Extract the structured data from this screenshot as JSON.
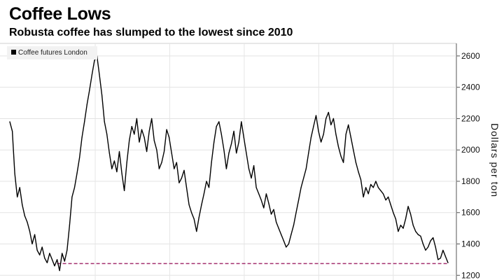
{
  "chart_data": {
    "type": "line",
    "title": "Coffee Lows",
    "subtitle": "Robusta coffee has slumped to the lowest since 2010",
    "ylabel": "Dollars per ton",
    "ylim": [
      1170,
      2680
    ],
    "yticks": [
      1200,
      1400,
      1600,
      1800,
      2000,
      2200,
      2400,
      2600
    ],
    "legend": {
      "position": "top-left"
    },
    "grid": true,
    "reference_line": {
      "value": 1275,
      "color": "#a3306f",
      "style": "dashed"
    },
    "series": [
      {
        "name": "Coffee futures London",
        "color": "#000000",
        "x": [
          0,
          1,
          2,
          3,
          4,
          5,
          6,
          7,
          8,
          9,
          10,
          11,
          12,
          13,
          14,
          15,
          16,
          17,
          18,
          19,
          20,
          21,
          22,
          23,
          24,
          25,
          26,
          27,
          28,
          29,
          30,
          31,
          32,
          33,
          34,
          35,
          36,
          37,
          38,
          39,
          40,
          41,
          42,
          43,
          44,
          45,
          46,
          47,
          48,
          49,
          50,
          51,
          52,
          53,
          54,
          55,
          56,
          57,
          58,
          59,
          60,
          61,
          62,
          63,
          64,
          65,
          66,
          67,
          68,
          69,
          70,
          71,
          72,
          73,
          74,
          75,
          76,
          77,
          78,
          79,
          80,
          81,
          82,
          83,
          84,
          85,
          86,
          87,
          88,
          89,
          90,
          91,
          92,
          93,
          94,
          95,
          96,
          97,
          98,
          99,
          100,
          101,
          102,
          103,
          104,
          105,
          106,
          107,
          108,
          109,
          110,
          111,
          112,
          113,
          114,
          115,
          116,
          117,
          118,
          119,
          120,
          121,
          122,
          123,
          124,
          125,
          126,
          127,
          128,
          129,
          130,
          131,
          132,
          133,
          134,
          135,
          136,
          137,
          138,
          139,
          140,
          141,
          142,
          143,
          144,
          145,
          146,
          147,
          148,
          149,
          150,
          151,
          152,
          153,
          154,
          155,
          156,
          157,
          158,
          159,
          160,
          161,
          162,
          163,
          164,
          165,
          166,
          167,
          168,
          169,
          170,
          171,
          172,
          173,
          174,
          175,
          176
        ],
        "y": [
          2180,
          2120,
          1850,
          1700,
          1760,
          1650,
          1580,
          1540,
          1480,
          1400,
          1460,
          1360,
          1330,
          1380,
          1310,
          1280,
          1340,
          1300,
          1260,
          1300,
          1230,
          1340,
          1290,
          1360,
          1520,
          1700,
          1760,
          1850,
          1950,
          2080,
          2180,
          2290,
          2380,
          2480,
          2570,
          2600,
          2480,
          2350,
          2180,
          2100,
          1980,
          1880,
          1930,
          1860,
          1990,
          1850,
          1740,
          1920,
          2060,
          2150,
          2100,
          2200,
          2050,
          2130,
          2080,
          1990,
          2120,
          2200,
          2060,
          2000,
          1880,
          1920,
          1990,
          2130,
          2080,
          1980,
          1880,
          1920,
          1790,
          1820,
          1870,
          1760,
          1650,
          1600,
          1560,
          1480,
          1570,
          1650,
          1720,
          1800,
          1760,
          1920,
          2050,
          2150,
          2180,
          2100,
          2000,
          1880,
          1980,
          2040,
          2120,
          1980,
          2050,
          2180,
          2080,
          1980,
          1880,
          1820,
          1900,
          1760,
          1720,
          1680,
          1630,
          1720,
          1660,
          1590,
          1620,
          1540,
          1500,
          1460,
          1420,
          1380,
          1400,
          1460,
          1520,
          1600,
          1680,
          1760,
          1820,
          1880,
          1980,
          2080,
          2150,
          2220,
          2120,
          2050,
          2100,
          2200,
          2240,
          2160,
          2200,
          2100,
          2020,
          1960,
          1920,
          2100,
          2160,
          2080,
          2000,
          1920,
          1860,
          1810,
          1700,
          1760,
          1720,
          1780,
          1760,
          1800,
          1760,
          1740,
          1720,
          1680,
          1700,
          1650,
          1600,
          1560,
          1480,
          1520,
          1500,
          1560,
          1640,
          1590,
          1520,
          1480,
          1460,
          1450,
          1400,
          1360,
          1380,
          1420,
          1440,
          1380,
          1300,
          1310,
          1360,
          1320,
          1280
        ]
      }
    ]
  }
}
